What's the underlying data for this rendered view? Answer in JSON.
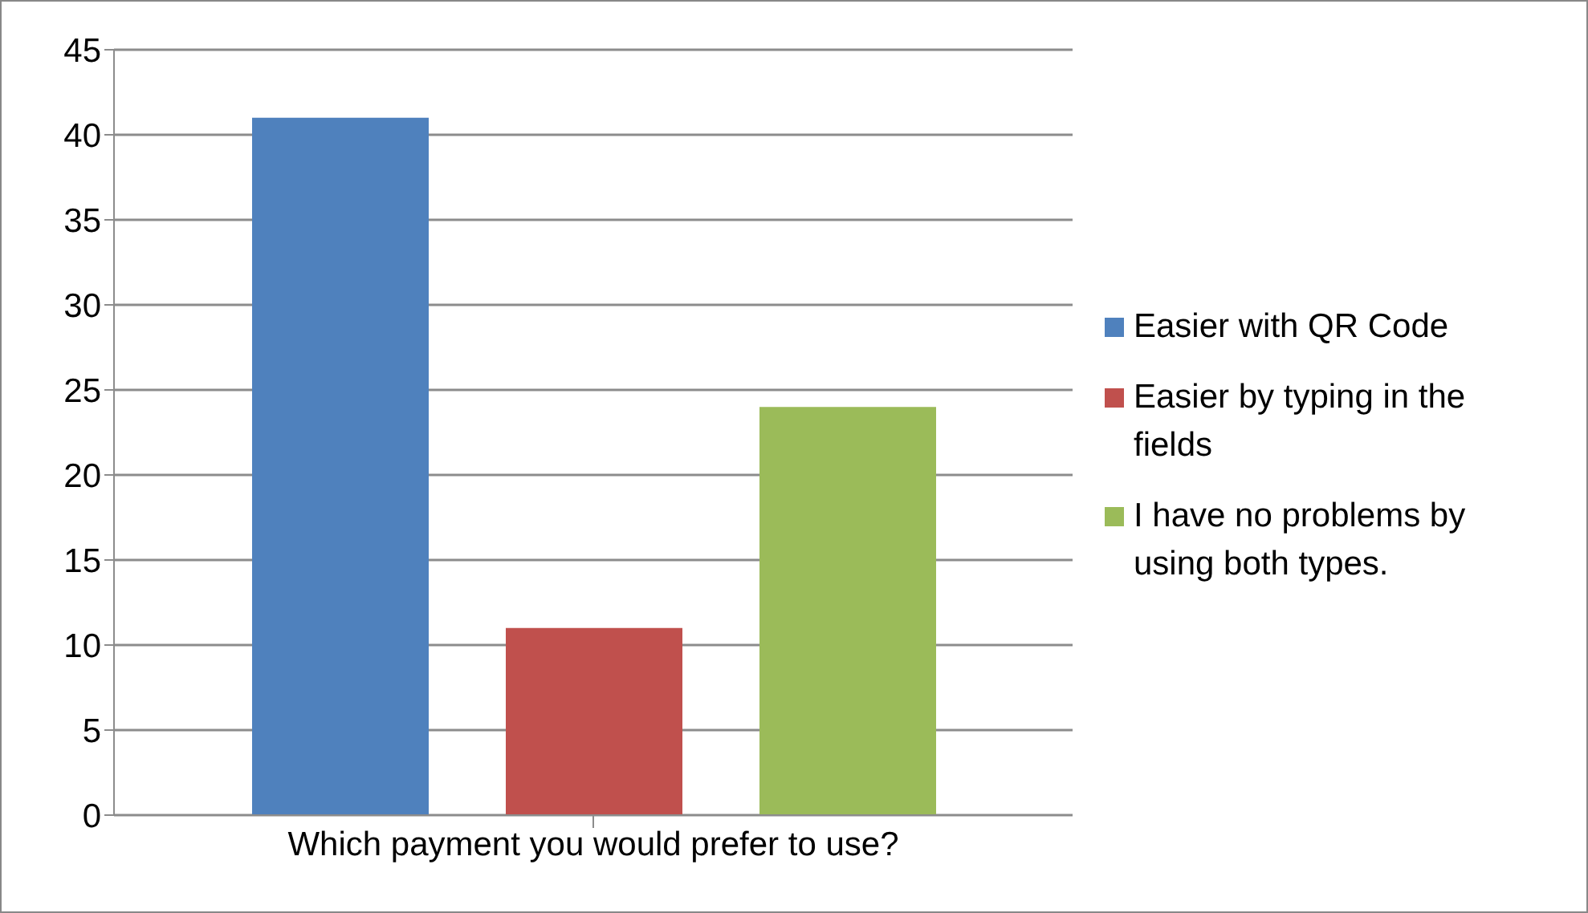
{
  "chart_data": {
    "type": "bar",
    "categories": [
      "Which payment you would prefer to use?"
    ],
    "series": [
      {
        "name": "Easier with QR Code",
        "color": "#4f81bd",
        "values": [
          41
        ]
      },
      {
        "name": "Easier by typing in the fields",
        "color": "#c0504d",
        "values": [
          11
        ]
      },
      {
        "name": "I have no problems by using both types.",
        "color": "#9bbb59",
        "values": [
          24
        ]
      }
    ],
    "ylim": [
      0,
      45
    ],
    "yticks": [
      0,
      5,
      10,
      15,
      20,
      25,
      30,
      35,
      40,
      45
    ],
    "grid": "y",
    "legend": "right"
  }
}
